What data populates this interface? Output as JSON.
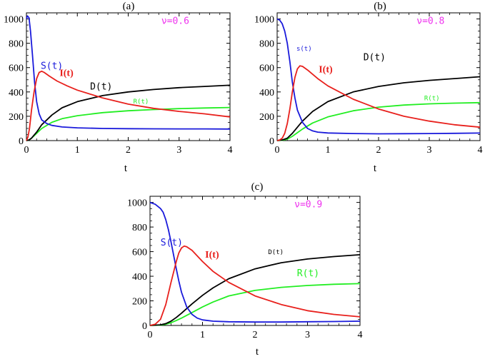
{
  "colors": {
    "S": "#1a1adb",
    "I": "#e8201c",
    "D": "#000000",
    "R": "#22ee22",
    "nu": "#ee33ee"
  },
  "chart_data": [
    {
      "type": "line",
      "title": "(a)",
      "xlabel": "t",
      "ylabel": "",
      "xlim": [
        0,
        4
      ],
      "ylim": [
        0,
        1050
      ],
      "xticks": [
        "0",
        "1",
        "2",
        "3",
        "4"
      ],
      "yticks": [
        "0",
        "200",
        "400",
        "600",
        "800",
        "1000"
      ],
      "annotation": "ν=0.6",
      "series": [
        {
          "name": "S",
          "label": "S(t)",
          "color": "#1a1adb",
          "x": [
            0,
            0.02,
            0.05,
            0.08,
            0.12,
            0.16,
            0.2,
            0.25,
            0.3,
            0.4,
            0.5,
            0.7,
            1.0,
            1.5,
            2,
            2.5,
            3,
            3.5,
            4
          ],
          "y": [
            1000,
            1025,
            1010,
            900,
            700,
            480,
            320,
            220,
            170,
            140,
            125,
            112,
            105,
            100,
            98,
            97,
            96,
            96,
            95
          ]
        },
        {
          "name": "I",
          "label": "I(t)",
          "color": "#e8201c",
          "x": [
            0,
            0.03,
            0.06,
            0.1,
            0.15,
            0.2,
            0.25,
            0.3,
            0.35,
            0.45,
            0.6,
            0.8,
            1.0,
            1.5,
            2,
            2.5,
            3,
            3.5,
            4
          ],
          "y": [
            0,
            30,
            100,
            250,
            400,
            510,
            560,
            570,
            560,
            530,
            490,
            450,
            415,
            350,
            300,
            265,
            240,
            220,
            195
          ]
        },
        {
          "name": "D",
          "label": "D(t)",
          "color": "#000000",
          "x": [
            0,
            0.05,
            0.1,
            0.2,
            0.3,
            0.5,
            0.7,
            1.0,
            1.5,
            2,
            2.5,
            3,
            3.5,
            4
          ],
          "y": [
            0,
            5,
            20,
            70,
            130,
            210,
            270,
            320,
            370,
            400,
            420,
            435,
            445,
            455
          ]
        },
        {
          "name": "R",
          "label": "R(t)",
          "color": "#22ee22",
          "x": [
            0,
            0.05,
            0.1,
            0.2,
            0.3,
            0.5,
            0.7,
            1.0,
            1.5,
            2,
            2.5,
            3,
            3.5,
            4
          ],
          "y": [
            0,
            5,
            20,
            60,
            100,
            150,
            180,
            205,
            230,
            245,
            255,
            263,
            268,
            272
          ]
        }
      ]
    },
    {
      "type": "line",
      "title": "(b)",
      "xlabel": "t",
      "ylabel": "",
      "xlim": [
        0,
        4
      ],
      "ylim": [
        0,
        1050
      ],
      "xticks": [
        "0",
        "1",
        "2",
        "3",
        "4"
      ],
      "yticks": [
        "0",
        "200",
        "400",
        "600",
        "800",
        "1000"
      ],
      "annotation": "ν=0.8",
      "series": [
        {
          "name": "S",
          "label": "s(t)",
          "color": "#1a1adb",
          "x": [
            0,
            0.05,
            0.1,
            0.15,
            0.2,
            0.25,
            0.3,
            0.35,
            0.4,
            0.5,
            0.6,
            0.7,
            0.8,
            1.0,
            1.5,
            2,
            2.5,
            3,
            3.5,
            4
          ],
          "y": [
            1000,
            990,
            960,
            900,
            800,
            650,
            480,
            350,
            250,
            150,
            100,
            80,
            70,
            63,
            58,
            56,
            57,
            58,
            60,
            62
          ]
        },
        {
          "name": "I",
          "label": "I(t)",
          "color": "#e8201c",
          "x": [
            0,
            0.05,
            0.1,
            0.15,
            0.2,
            0.25,
            0.3,
            0.35,
            0.4,
            0.45,
            0.5,
            0.6,
            0.8,
            1.0,
            1.5,
            2,
            2.5,
            3,
            3.5,
            4
          ],
          "y": [
            0,
            5,
            20,
            60,
            140,
            260,
            400,
            520,
            590,
            615,
            610,
            580,
            510,
            450,
            340,
            260,
            200,
            160,
            130,
            110
          ]
        },
        {
          "name": "D",
          "label": "D(t)",
          "color": "#000000",
          "x": [
            0,
            0.1,
            0.2,
            0.3,
            0.4,
            0.5,
            0.7,
            1.0,
            1.5,
            2,
            2.5,
            3,
            3.5,
            4
          ],
          "y": [
            0,
            5,
            20,
            60,
            110,
            160,
            240,
            320,
            400,
            445,
            475,
            495,
            510,
            525
          ]
        },
        {
          "name": "R",
          "label": "R(t)",
          "color": "#22ee22",
          "x": [
            0,
            0.1,
            0.2,
            0.3,
            0.4,
            0.5,
            0.7,
            1.0,
            1.5,
            2,
            2.5,
            3,
            3.5,
            4
          ],
          "y": [
            0,
            3,
            12,
            35,
            65,
            95,
            145,
            195,
            245,
            275,
            292,
            302,
            308,
            312
          ]
        }
      ]
    },
    {
      "type": "line",
      "title": "(c)",
      "xlabel": "t",
      "ylabel": "",
      "xlim": [
        0,
        4
      ],
      "ylim": [
        0,
        1050
      ],
      "xticks": [
        "0",
        "1",
        "2",
        "3",
        "4"
      ],
      "yticks": [
        "0",
        "200",
        "400",
        "600",
        "800",
        "1000"
      ],
      "annotation": "ν=0.9",
      "series": [
        {
          "name": "S",
          "label": "S(t)",
          "color": "#1a1adb",
          "x": [
            0,
            0.1,
            0.2,
            0.25,
            0.3,
            0.35,
            0.4,
            0.45,
            0.5,
            0.55,
            0.6,
            0.7,
            0.8,
            0.9,
            1.0,
            1.2,
            1.5,
            2,
            2.5,
            3,
            3.5,
            4
          ],
          "y": [
            1000,
            985,
            950,
            920,
            860,
            780,
            680,
            570,
            460,
            360,
            270,
            150,
            90,
            60,
            45,
            35,
            30,
            28,
            28,
            30,
            32,
            35
          ]
        },
        {
          "name": "I",
          "label": "I(t)",
          "color": "#e8201c",
          "x": [
            0,
            0.1,
            0.2,
            0.3,
            0.4,
            0.5,
            0.55,
            0.6,
            0.65,
            0.7,
            0.8,
            1.0,
            1.2,
            1.5,
            2,
            2.5,
            3,
            3.5,
            4
          ],
          "y": [
            0,
            10,
            50,
            170,
            350,
            520,
            590,
            630,
            645,
            640,
            610,
            520,
            440,
            350,
            240,
            170,
            120,
            90,
            70
          ]
        },
        {
          "name": "D",
          "label": "D(t)",
          "color": "#000000",
          "x": [
            0,
            0.2,
            0.3,
            0.4,
            0.5,
            0.6,
            0.8,
            1.0,
            1.2,
            1.5,
            2,
            2.5,
            3,
            3.5,
            4
          ],
          "y": [
            0,
            5,
            15,
            35,
            65,
            100,
            175,
            245,
            305,
            380,
            460,
            510,
            540,
            560,
            575
          ]
        },
        {
          "name": "R",
          "label": "R(t)",
          "color": "#22ee22",
          "x": [
            0,
            0.2,
            0.3,
            0.4,
            0.5,
            0.6,
            0.8,
            1.0,
            1.2,
            1.5,
            2,
            2.5,
            3,
            3.5,
            4
          ],
          "y": [
            0,
            3,
            10,
            22,
            40,
            60,
            105,
            150,
            190,
            240,
            285,
            310,
            325,
            335,
            340
          ]
        }
      ]
    }
  ]
}
